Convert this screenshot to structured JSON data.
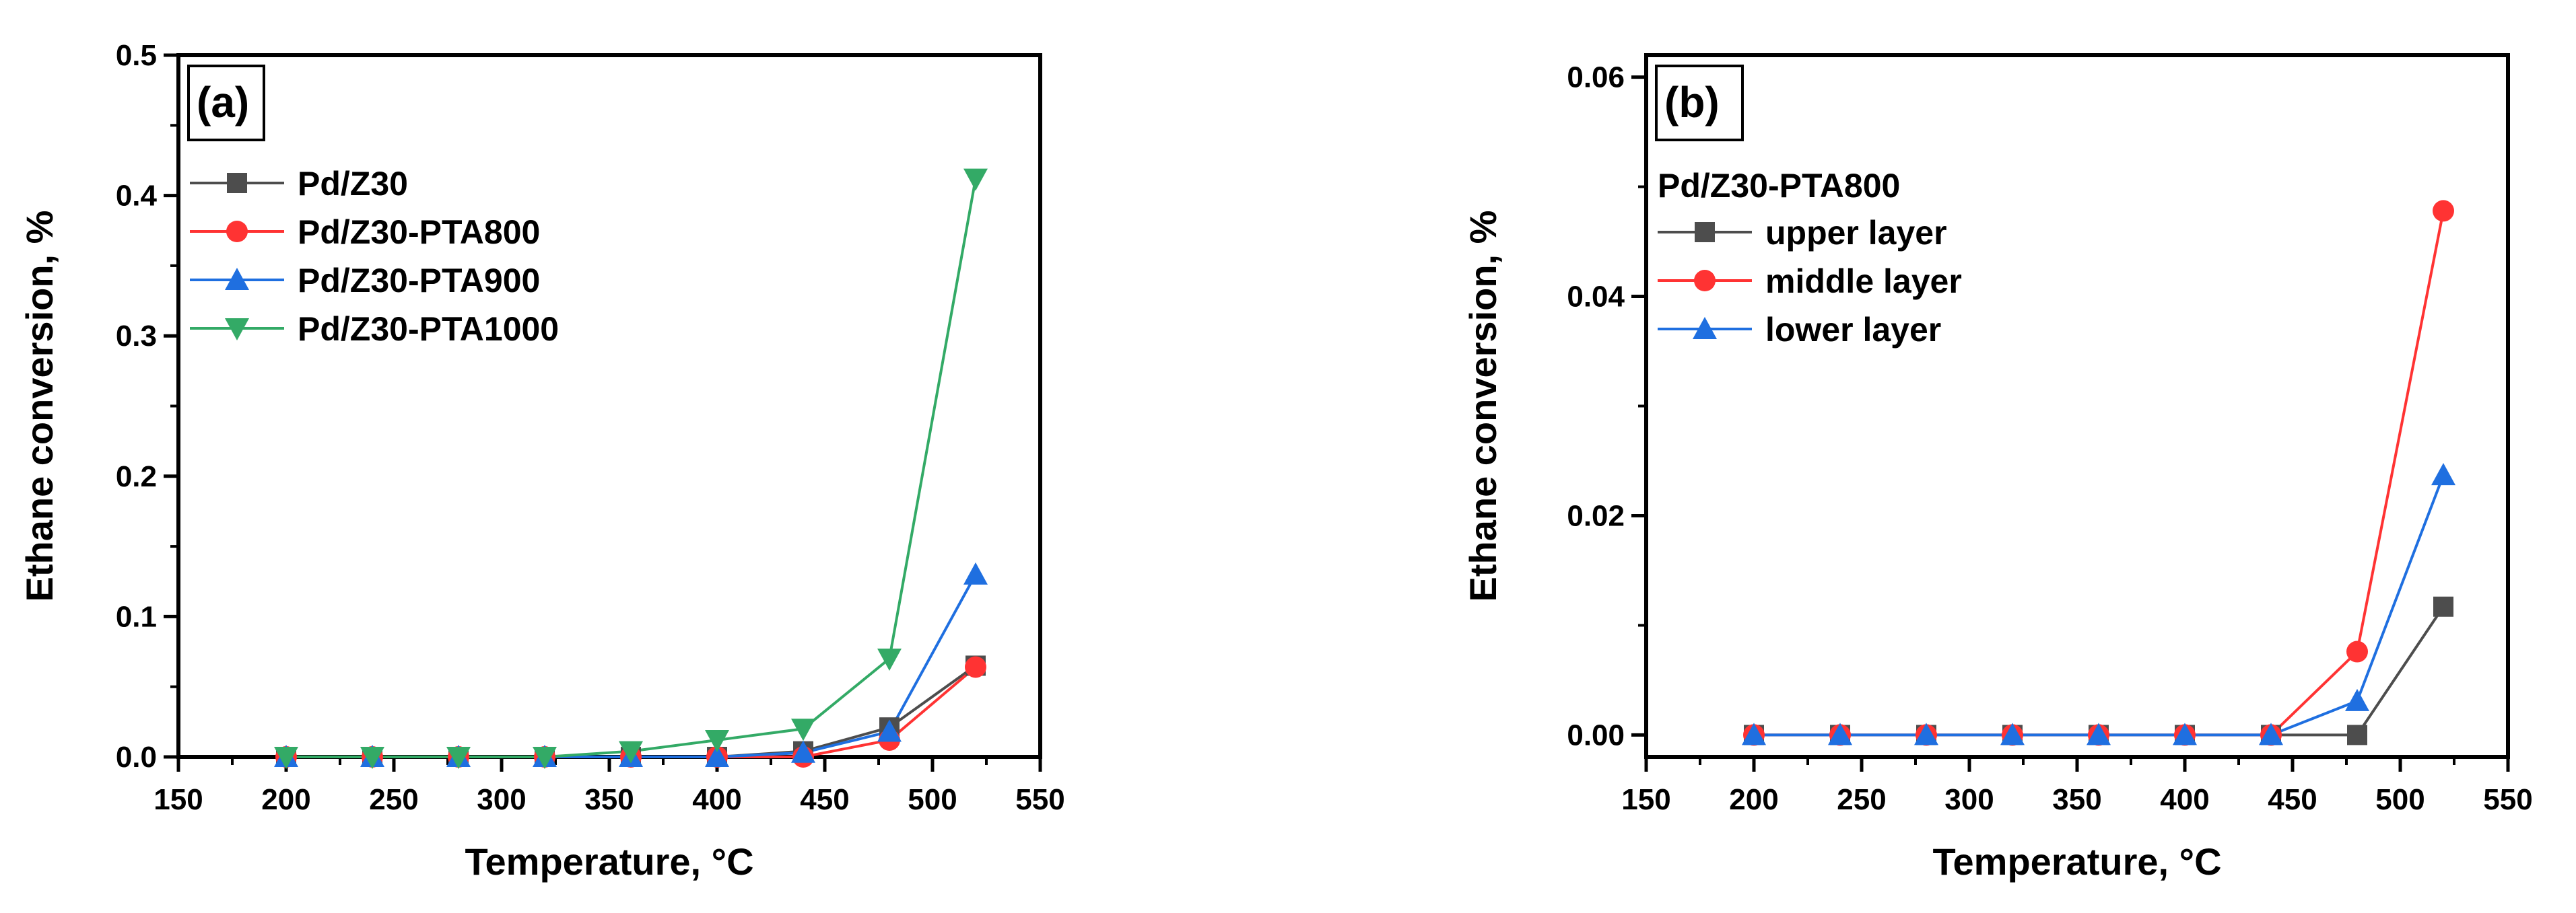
{
  "colors": {
    "black_series": "#4d4d4d",
    "red_series": "#ff3333",
    "blue_series": "#1f6fe0",
    "green_series": "#33aa66"
  },
  "chart_data": [
    {
      "type": "line",
      "panel_label": "(a)",
      "xlabel": "Temperature, °C",
      "ylabel": "Ethane conversion, %",
      "xlim": [
        150,
        550
      ],
      "ylim": [
        0,
        0.5
      ],
      "xticks": [
        "150",
        "200",
        "250",
        "300",
        "350",
        "400",
        "450",
        "500",
        "550"
      ],
      "yticks": [
        "0.0",
        "0.1",
        "0.2",
        "0.3",
        "0.4",
        "0.5"
      ],
      "legend_title": "",
      "x": [
        200,
        240,
        280,
        320,
        360,
        400,
        440,
        480,
        520
      ],
      "series": [
        {
          "name": "Pd/Z30",
          "color": "#4d4d4d",
          "marker": "square",
          "values": [
            0,
            0,
            0,
            0,
            0,
            0,
            0.004,
            0.021,
            0.065
          ]
        },
        {
          "name": "Pd/Z30-PTA800",
          "color": "#ff3333",
          "marker": "circle",
          "values": [
            0,
            0,
            0,
            0,
            0,
            0,
            0,
            0.012,
            0.064
          ]
        },
        {
          "name": "Pd/Z30-PTA900",
          "color": "#1f6fe0",
          "marker": "triangle-up",
          "values": [
            0,
            0,
            0,
            0,
            0,
            0,
            0.003,
            0.018,
            0.13
          ]
        },
        {
          "name": "Pd/Z30-PTA1000",
          "color": "#33aa66",
          "marker": "triangle-down",
          "values": [
            0,
            0,
            0,
            0,
            0.004,
            0.012,
            0.02,
            0.07,
            0.412
          ]
        }
      ]
    },
    {
      "type": "line",
      "panel_label": "(b)",
      "xlabel": "Temperature, °C",
      "ylabel": "Ethane conversion, %",
      "xlim": [
        150,
        550
      ],
      "ylim": [
        -0.002,
        0.062
      ],
      "xticks": [
        "150",
        "200",
        "250",
        "300",
        "350",
        "400",
        "450",
        "500",
        "550"
      ],
      "yticks": [
        "0.00",
        "0.02",
        "0.04",
        "0.06"
      ],
      "legend_title": "Pd/Z30-PTA800",
      "x": [
        200,
        240,
        280,
        320,
        360,
        400,
        440,
        480,
        520
      ],
      "series": [
        {
          "name": "upper layer",
          "color": "#4d4d4d",
          "marker": "square",
          "values": [
            0,
            0,
            0,
            0,
            0,
            0,
            0,
            0,
            0.0117
          ]
        },
        {
          "name": "middle layer",
          "color": "#ff3333",
          "marker": "circle",
          "values": [
            0,
            0,
            0,
            0,
            0,
            0,
            0,
            0.0076,
            0.0478
          ]
        },
        {
          "name": "lower layer",
          "color": "#1f6fe0",
          "marker": "triangle-up",
          "values": [
            0,
            0,
            0,
            0,
            0,
            0,
            0,
            0.0031,
            0.0237
          ]
        }
      ]
    }
  ]
}
